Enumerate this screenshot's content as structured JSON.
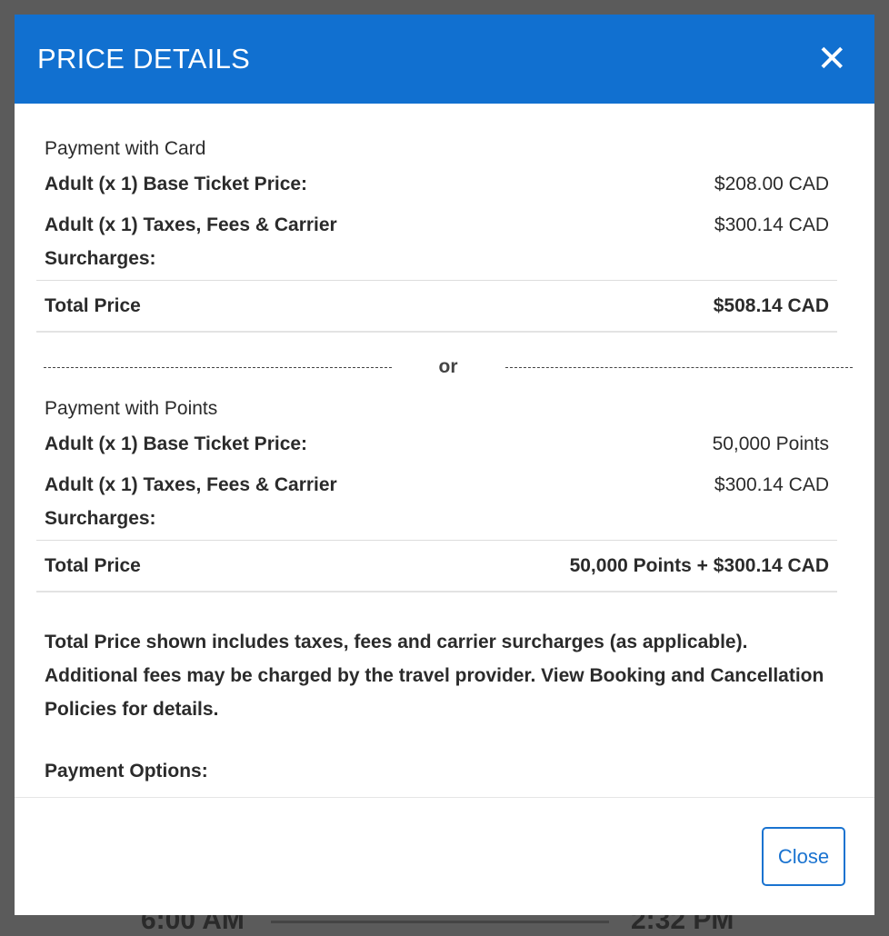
{
  "background": {
    "depart_time": "6:00 AM",
    "arrive_time": "2:32 PM"
  },
  "modal": {
    "title": "PRICE DETAILS",
    "close_icon": "close-x-icon",
    "card": {
      "label": "Payment with Card",
      "rows": [
        {
          "label": "Adult (x 1) Base Ticket Price:",
          "value": "$208.00 CAD"
        },
        {
          "label": "Adult (x 1) Taxes, Fees & Carrier Surcharges:",
          "value": "$300.14 CAD"
        }
      ],
      "total_label": "Total Price",
      "total_value": "$508.14 CAD"
    },
    "or_label": "or",
    "points": {
      "label": "Payment with Points",
      "rows": [
        {
          "label": "Adult (x 1) Base Ticket Price:",
          "value": "50,000 Points"
        },
        {
          "label": "Adult (x 1) Taxes, Fees & Carrier Surcharges:",
          "value": "$300.14 CAD"
        }
      ],
      "total_label": "Total Price",
      "total_value": "50,000 Points + $300.14 CAD"
    },
    "note": "Total Price shown includes taxes, fees and carrier surcharges (as applicable). Additional fees may be charged by the travel provider. View Booking and Cancellation Policies for details.",
    "payment_options_label": "Payment Options:",
    "close_button": "Close"
  },
  "colors": {
    "header": "#1170d0",
    "accent": "#1a73d0",
    "overlay": "#5b5b5b"
  }
}
